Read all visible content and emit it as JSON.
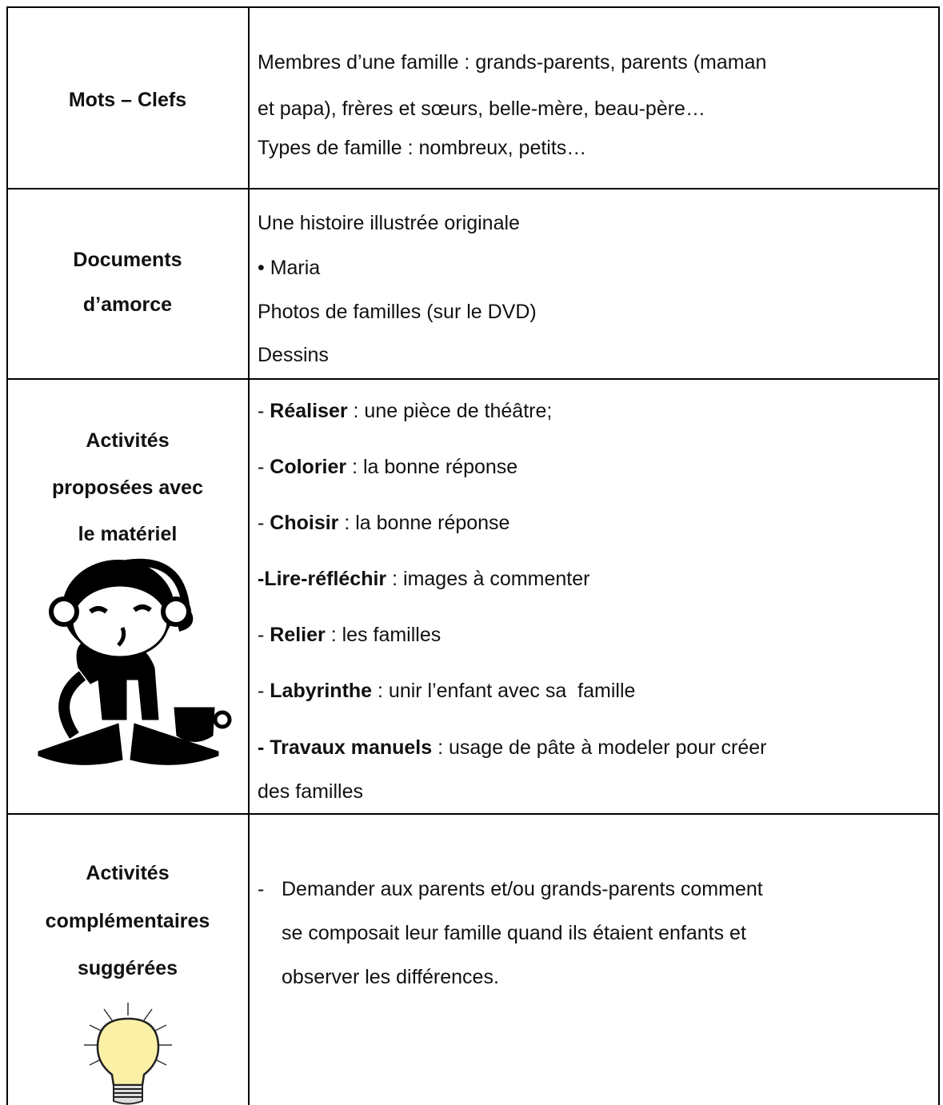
{
  "table": {
    "rows": [
      {
        "header": [
          "Mots – Clefs"
        ],
        "content": [
          "Membres d’une famille : grands-parents, parents (maman",
          "et papa), frères et sœurs, belle-mère, beau-père…",
          "Types de famille : nombreux, petits…"
        ]
      },
      {
        "header": [
          "Documents",
          "d’amorce"
        ],
        "content": [
          "Une histoire illustrée originale",
          "• Maria",
          "Photos de familles (sur le DVD)",
          "Dessins"
        ]
      },
      {
        "header": [
          "Activités",
          "proposées avec",
          "le matériel"
        ],
        "items": [
          [
            {
              "text": "- "
            },
            {
              "text": "Réaliser",
              "bold": true
            },
            {
              "text": " : une pièce de théâtre;"
            }
          ],
          [
            {
              "text": "- "
            },
            {
              "text": "Colorier",
              "bold": true
            },
            {
              "text": " : la bonne réponse"
            }
          ],
          [
            {
              "text": "- "
            },
            {
              "text": "Choisir",
              "bold": true
            },
            {
              "text": " : la bonne réponse"
            }
          ],
          [
            {
              "text": "-Lire-réfléchir",
              "bold": true
            },
            {
              "text": " : images à commenter"
            }
          ],
          [
            {
              "text": "- "
            },
            {
              "text": "Relier",
              "bold": true
            },
            {
              "text": " : les familles"
            }
          ],
          [
            {
              "text": "- "
            },
            {
              "text": "Labyrinthe",
              "bold": true
            },
            {
              "text": " : unir l’enfant avec sa  famille"
            }
          ],
          [
            {
              "text": "- Travaux manuels",
              "bold": true
            },
            {
              "text": " : usage de pâte à modeler pour créer"
            }
          ],
          [
            {
              "text": "des familles"
            }
          ]
        ]
      },
      {
        "header": [
          "Activités",
          "complémentaires",
          "suggérées"
        ],
        "bullet": "-",
        "content": [
          "Demander aux parents et/ou grands-parents comment",
          "se composait leur famille quand ils étaient enfants et",
          "observer les différences."
        ]
      }
    ]
  }
}
